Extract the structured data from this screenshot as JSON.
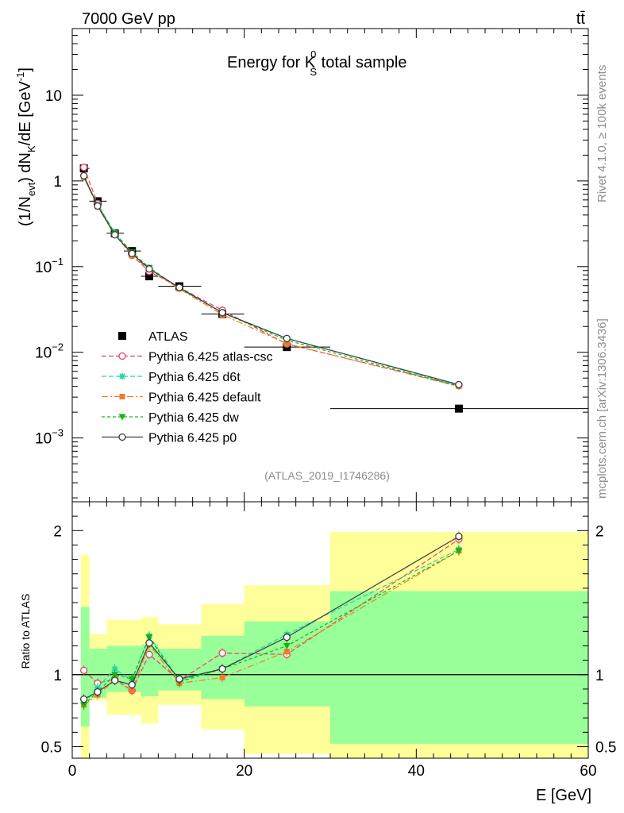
{
  "header": {
    "left": "7000 GeV pp",
    "right": "tt̄",
    "analysis": "(ATLAS_2019_I1746286)"
  },
  "side_labels": {
    "rivet": "Rivet 4.1.0, ≥ 100k events",
    "mcplots": "mcplots.cern.ch [arXiv:1306.3436]"
  },
  "colors": {
    "data": "#000000",
    "atlas_csc": "#e8425e",
    "d6t": "#1fd5a5",
    "default": "#f47b2c",
    "dw": "#14b414",
    "p0": "#3d3d3d",
    "band_inner": "#99ff99",
    "band_outer": "#ffff99"
  },
  "chart_data": [
    {
      "type": "scatter",
      "name": "main",
      "title": "Energy for K",
      "title_super": "0",
      "title_sub": "S",
      "title_suffix": " total sample",
      "ylabel": "(1/N_evt) dN_K/dE [GeV^-1]",
      "ylabel_parts": [
        "(1/N",
        "evt",
        ") dN",
        "K",
        "/dE [GeV",
        "-1",
        "]"
      ],
      "xlabel": "E [GeV]",
      "yscale": "log",
      "xlim": [
        0,
        60
      ],
      "ylim": [
        0.00018,
        60
      ],
      "yticks": [
        {
          "v": 0.001,
          "m": "10",
          "e": "−3"
        },
        {
          "v": 0.01,
          "m": "10",
          "e": "−2"
        },
        {
          "v": 0.1,
          "m": "10",
          "e": "−1"
        },
        {
          "v": 1,
          "m": "1",
          "e": ""
        },
        {
          "v": 10,
          "m": "10",
          "e": ""
        }
      ],
      "x": [
        1.35,
        2.95,
        4.95,
        6.95,
        8.95,
        12.45,
        17.45,
        24.95,
        44.95
      ],
      "x_err": [
        [
          1,
          2
        ],
        [
          2,
          4
        ],
        [
          4,
          6
        ],
        [
          6,
          8
        ],
        [
          8,
          10
        ],
        [
          10,
          15
        ],
        [
          15,
          20
        ],
        [
          20,
          30
        ],
        [
          30,
          60
        ]
      ],
      "data": [
        1.4,
        0.58,
        0.245,
        0.152,
        0.077,
        0.059,
        0.028,
        0.0115,
        0.0022
      ],
      "series": [
        {
          "name": "Pythia 6.425 atlas-csc",
          "key": "atlas_csc",
          "marker": "open-circle",
          "dash": "6,3",
          "values": [
            1.44,
            0.545,
            0.238,
            0.135,
            0.088,
            0.057,
            0.031,
            0.0125,
            0.0041
          ]
        },
        {
          "name": "Pythia 6.425 d6t",
          "key": "d6t",
          "marker": "star",
          "dash": "6,3",
          "values": [
            1.12,
            0.53,
            0.25,
            0.145,
            0.098,
            0.056,
            0.029,
            0.0146,
            0.0041
          ]
        },
        {
          "name": "Pythia 6.425 default",
          "key": "default",
          "marker": "square",
          "dash": "8,3,2,3",
          "values": [
            1.1,
            0.5,
            0.235,
            0.135,
            0.093,
            0.055,
            0.0275,
            0.0126,
            0.004
          ]
        },
        {
          "name": "Pythia 6.425 dw",
          "key": "dw",
          "marker": "triangle-down",
          "dash": "4,3",
          "values": [
            1.1,
            0.51,
            0.245,
            0.147,
            0.097,
            0.056,
            0.029,
            0.0138,
            0.004
          ]
        },
        {
          "name": "Pythia 6.425 p0",
          "key": "p0",
          "marker": "open-circle",
          "dash": "",
          "values": [
            1.15,
            0.51,
            0.235,
            0.142,
            0.094,
            0.057,
            0.029,
            0.0145,
            0.0042
          ]
        }
      ]
    },
    {
      "type": "scatter",
      "name": "ratio",
      "ylabel": "Ratio to ATLAS",
      "xlabel": "E [GeV]",
      "xlim": [
        0,
        60
      ],
      "ylim": [
        0.42,
        2.2
      ],
      "yticks": [
        {
          "v": 0.5,
          "label": "0.5"
        },
        {
          "v": 1,
          "label": "1"
        },
        {
          "v": 2,
          "label": "2"
        }
      ],
      "xticks": [
        0,
        20,
        40,
        60
      ],
      "bands": [
        {
          "x": [
            1,
            2
          ],
          "outer": [
            0.42,
            1.83
          ],
          "inner": [
            0.64,
            1.47
          ]
        },
        {
          "x": [
            2,
            4
          ],
          "outer": [
            0.82,
            1.28
          ],
          "inner": [
            0.84,
            1.18
          ]
        },
        {
          "x": [
            4,
            8
          ],
          "outer": [
            0.72,
            1.38
          ],
          "inner": [
            0.88,
            1.2
          ]
        },
        {
          "x": [
            8,
            10
          ],
          "outer": [
            0.66,
            1.4
          ],
          "inner": [
            0.85,
            1.21
          ]
        },
        {
          "x": [
            10,
            15
          ],
          "outer": [
            0.79,
            1.35
          ],
          "inner": [
            0.89,
            1.18
          ]
        },
        {
          "x": [
            15,
            20
          ],
          "outer": [
            0.62,
            1.49
          ],
          "inner": [
            0.83,
            1.27
          ]
        },
        {
          "x": [
            20,
            30
          ],
          "outer": [
            0.45,
            1.62
          ],
          "inner": [
            0.78,
            1.37
          ]
        },
        {
          "x": [
            30,
            60
          ],
          "outer": [
            0.42,
            1.99
          ],
          "inner": [
            0.52,
            1.58
          ]
        }
      ],
      "x": [
        1.35,
        2.95,
        4.95,
        6.95,
        8.95,
        12.45,
        17.45,
        24.95,
        44.95
      ],
      "series": [
        {
          "name": "Pythia 6.425 atlas-csc",
          "key": "atlas_csc",
          "marker": "open-circle",
          "dash": "6,3",
          "values": [
            1.03,
            0.94,
            0.97,
            0.89,
            1.14,
            0.96,
            1.15,
            1.14,
            1.94
          ]
        },
        {
          "name": "Pythia 6.425 d6t",
          "key": "d6t",
          "marker": "star",
          "dash": "6,3",
          "values": [
            0.8,
            0.91,
            1.04,
            0.96,
            1.27,
            0.96,
            1.04,
            1.28,
            1.87
          ]
        },
        {
          "name": "Pythia 6.425 default",
          "key": "default",
          "marker": "square",
          "dash": "8,3,2,3",
          "values": [
            0.79,
            0.86,
            0.96,
            0.89,
            1.21,
            0.94,
            0.98,
            1.16,
            1.86
          ]
        },
        {
          "name": "Pythia 6.425 dw",
          "key": "dw",
          "marker": "triangle-down",
          "dash": "4,3",
          "values": [
            0.79,
            0.88,
            1.0,
            0.97,
            1.26,
            0.95,
            1.04,
            1.2,
            1.86
          ]
        },
        {
          "name": "Pythia 6.425 p0",
          "key": "p0",
          "marker": "open-circle",
          "dash": "",
          "values": [
            0.83,
            0.88,
            0.96,
            0.93,
            1.22,
            0.97,
            1.04,
            1.26,
            1.96
          ]
        }
      ]
    }
  ],
  "legend": {
    "position": "lower-left",
    "entries": [
      {
        "label": "ATLAS",
        "key": "data",
        "marker": "square-filled",
        "dash": "none"
      },
      {
        "label": "Pythia 6.425 atlas-csc",
        "key": "atlas_csc",
        "marker": "open-circle",
        "dash": "6,3"
      },
      {
        "label": "Pythia 6.425 d6t",
        "key": "d6t",
        "marker": "star",
        "dash": "6,3"
      },
      {
        "label": "Pythia 6.425 default",
        "key": "default",
        "marker": "square",
        "dash": "8,3,2,3"
      },
      {
        "label": "Pythia 6.425 dw",
        "key": "dw",
        "marker": "triangle-down",
        "dash": "4,3"
      },
      {
        "label": "Pythia 6.425 p0",
        "key": "p0",
        "marker": "open-circle",
        "dash": ""
      }
    ]
  }
}
